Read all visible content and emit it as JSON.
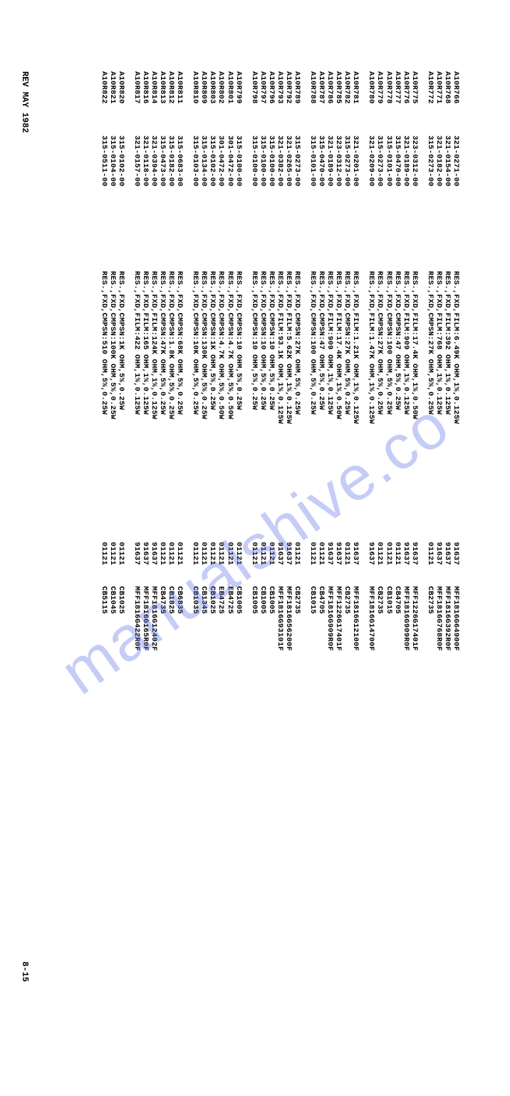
{
  "watermark": "manualshive.co",
  "footer": {
    "rev": "REV MAY 1982",
    "page": "8-15"
  },
  "groups": [
    [
      {
        "ref": "A10R766",
        "pn": "321-0271-00",
        "desc": "RES.,FXD,FILM:6.49K OHM,1%,0.125W",
        "mfr": "91637",
        "mpn": "MFF1816G64900F"
      },
      {
        "ref": "A10R768",
        "pn": "321-0154-00",
        "desc": "RES.,FXD,FILM:392 OHM,1%,0.125W",
        "mfr": "91637",
        "mpn": "MFF1816G392R0F"
      },
      {
        "ref": "A10R771",
        "pn": "321-0182-00",
        "desc": "RES.,FXD,FILM:768 OHM,1%,0.125W",
        "mfr": "91637",
        "mpn": "MFF1816G768R0F"
      },
      {
        "ref": "A10R772",
        "pn": "315-0273-00",
        "desc": "RES.,FXD,CMPSN:27K OHM,5%,0.25W",
        "mfr": "01121",
        "mpn": "CB2735"
      }
    ],
    [
      {
        "ref": "A10R775",
        "pn": "323-0312-00",
        "desc": "RES.,FXD,FILM:17.4K OHM,1%,0.50W",
        "mfr": "91637",
        "mpn": "MFF1226G17401F"
      },
      {
        "ref": "A10R776",
        "pn": "321-0189-00",
        "desc": "RES.,FXD,FILM:909 OHM,1%,0.125W",
        "mfr": "91637",
        "mpn": "MFF1816G909R0F"
      },
      {
        "ref": "A10R777",
        "pn": "315-0470-00",
        "desc": "RES.,FXD,CMPSN:47 OHM,5%,0.25W",
        "mfr": "01121",
        "mpn": "CB4705"
      },
      {
        "ref": "A10R778",
        "pn": "315-0101-00",
        "desc": "RES.,FXD,CMPSN:100 OHM,5%,0.25W",
        "mfr": "01121",
        "mpn": "CB1015"
      },
      {
        "ref": "A10R779",
        "pn": "315-0273-00",
        "desc": "RES.,FXD,CMPSN:27K OHM,5%,0.25W",
        "mfr": "01121",
        "mpn": "CB2735"
      },
      {
        "ref": "A10R780",
        "pn": "321-0209-00",
        "desc": "RES.,FXD,FILM:1.47K OHM,1%,0.125W",
        "mfr": "91637",
        "mpn": "MFF1816G14700F"
      }
    ],
    [
      {
        "ref": "A10R781",
        "pn": "321-0201-00",
        "desc": "RES.,FXD,FILM:1.21K OHM,1%,0.125W",
        "mfr": "91637",
        "mpn": "MFF1816G12100F"
      },
      {
        "ref": "A10R782",
        "pn": "315-0273-00",
        "desc": "RES.,FXD,CMPSN:27K OHM,5%,0.25W",
        "mfr": "01121",
        "mpn": "CB2735"
      },
      {
        "ref": "A10R785",
        "pn": "323-0312-00",
        "desc": "RES.,FXD,FILM:17.4K OHM,1%,0.50W",
        "mfr": "91637",
        "mpn": "MFF1226G17401F"
      },
      {
        "ref": "A10R786",
        "pn": "321-0189-00",
        "desc": "RES.,FXD,FILM:909 OHM,1%,0.125W",
        "mfr": "91637",
        "mpn": "MFF1816G909R0F"
      },
      {
        "ref": "A10R787",
        "pn": "315-0470-00",
        "desc": "RES.,FXD,CMPSN:47 OHM,5%,0.25W",
        "mfr": "01121",
        "mpn": "CB4705"
      },
      {
        "ref": "A10R788",
        "pn": "315-0101-00",
        "desc": "RES.,FXD,CMPSN:100 OHM,5%,0.25W",
        "mfr": "01121",
        "mpn": "CB1015"
      }
    ],
    [
      {
        "ref": "A10R789",
        "pn": "315-0273-00",
        "desc": "RES.,FXD,CMPSN:27K OHM,5%,0.25W",
        "mfr": "01121",
        "mpn": "CB2735"
      },
      {
        "ref": "A10R792",
        "pn": "321-0265-00",
        "desc": "RES.,FXD,FILM:5.62K OHM,1%,0.125W",
        "mfr": "91637",
        "mpn": "MFF1816G56200F"
      },
      {
        "ref": "A10R793",
        "pn": "321-0382-00",
        "desc": "RES.,FXD,FILM:93.1K OHM,1%,0.125W",
        "mfr": "91637",
        "mpn": "MFF1816G93101F"
      },
      {
        "ref": "A10R796",
        "pn": "315-0100-00",
        "desc": "RES.,FXD,CMPSN:10 OHM,5%,0.25W",
        "mfr": "01121",
        "mpn": "CB1005"
      },
      {
        "ref": "A10R797",
        "pn": "315-0100-00",
        "desc": "RES.,FXD,CMPSN:10 OHM,5%,0.25W",
        "mfr": "01121",
        "mpn": "CB1005"
      },
      {
        "ref": "A10R798",
        "pn": "315-0100-00",
        "desc": "RES.,FXD,CMPSN:10 OHM,5%,0.25W",
        "mfr": "01121",
        "mpn": "CB1005"
      }
    ],
    [
      {
        "ref": "A10R799",
        "pn": "315-0100-00",
        "desc": "RES.,FXD,CMPSN:10 OHM,5%,0.25W",
        "mfr": "01121",
        "mpn": "CB1005"
      },
      {
        "ref": "A10R801",
        "pn": "301-0472-00",
        "desc": "RES.,FXD,CMPSN:4.7K OHM,5%,0.50W",
        "mfr": "01121",
        "mpn": "EB4725"
      },
      {
        "ref": "A10R802",
        "pn": "301-0472-00",
        "desc": "RES.,FXD,CMPSN:4.7K OHM,5%,0.50W",
        "mfr": "01121",
        "mpn": "EB4725"
      },
      {
        "ref": "A10R803",
        "pn": "315-0102-00",
        "desc": "RES.,FXD,CMPSN:1K OHM,5%,0.25W",
        "mfr": "01121",
        "mpn": "CB1025"
      },
      {
        "ref": "A10R809",
        "pn": "315-0134-00",
        "desc": "RES.,FXD,CMPSN:130K OHM,5%,0.25W",
        "mfr": "01121",
        "mpn": "CB1345"
      },
      {
        "ref": "A10R810",
        "pn": "315-0103-00",
        "desc": "RES.,FXD,CMPSN:10K OHM,5%,0.25W",
        "mfr": "01121",
        "mpn": "CB1035"
      }
    ],
    [
      {
        "ref": "A10R811",
        "pn": "315-0683-00",
        "desc": "RES.,FXD,CMPSN:68K OHM,5%,0.25W",
        "mfr": "01121",
        "mpn": "CB6835"
      },
      {
        "ref": "A10R812",
        "pn": "315-0182-00",
        "desc": "RES.,FXD,CMPSN:1.8K OHM,5%,0.25W",
        "mfr": "01121",
        "mpn": "CB1825"
      },
      {
        "ref": "A10R813",
        "pn": "315-0473-00",
        "desc": "RES.,FXD,CMPSN:47K OHM,5%,0.25W",
        "mfr": "01121",
        "mpn": "CB4735"
      },
      {
        "ref": "A10R814",
        "pn": "321-0394-00",
        "desc": "RES.,FXD,FILM:124K OHM,1%,0.125W",
        "mfr": "91637",
        "mpn": "MFF1816G12402F"
      },
      {
        "ref": "A10R816",
        "pn": "321-0118-00",
        "desc": "RES.,FXD,FILM:165 OHM,1%,0.125W",
        "mfr": "91637",
        "mpn": "MFF1816G165R0F"
      },
      {
        "ref": "A10R817",
        "pn": "321-0157-00",
        "desc": "RES.,FXD,FILM:422 OHM,1%,0.125W",
        "mfr": "91637",
        "mpn": "MFF1816G422R0F"
      }
    ],
    [
      {
        "ref": "A10R820",
        "pn": "315-0102-00",
        "desc": "RES.,FXD,CMPSN:1K OHM,5%,0.25W",
        "mfr": "01121",
        "mpn": "CB1025"
      },
      {
        "ref": "A10R821",
        "pn": "315-0104-00",
        "desc": "RES.,FXD,CMPSN:100K OHM,5%,0.25W",
        "mfr": "01121",
        "mpn": "CB1045"
      },
      {
        "ref": "A10R822",
        "pn": "315-0511-00",
        "desc": "RES.,FXD,CMPSN:510 OHM,5%,0.25W",
        "mfr": "01121",
        "mpn": "CB5115"
      }
    ]
  ]
}
